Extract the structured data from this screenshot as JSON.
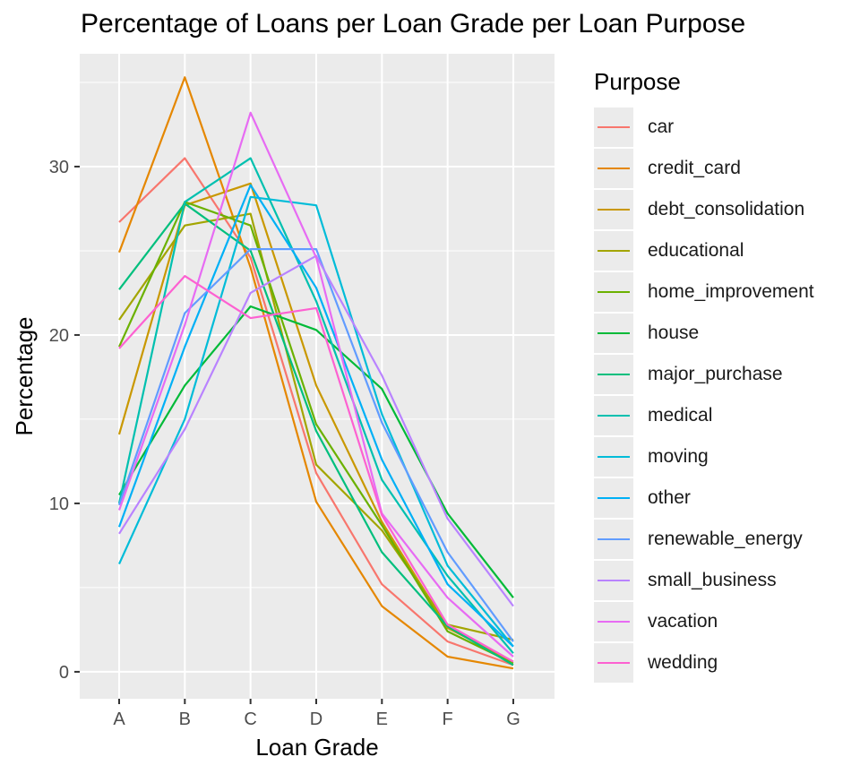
{
  "chart_data": {
    "type": "line",
    "title": "Percentage of Loans per Loan Grade per Loan Purpose",
    "xlabel": "Loan Grade",
    "ylabel": "Percentage",
    "categories": [
      "A",
      "B",
      "C",
      "D",
      "E",
      "F",
      "G"
    ],
    "y_ticks": [
      0,
      10,
      20,
      30
    ],
    "ylim": [
      -1.6,
      36.7
    ],
    "grid": true,
    "legend": {
      "title": "Purpose",
      "position": "right"
    },
    "series": [
      {
        "name": "car",
        "color": "#F8766D",
        "values": [
          26.7,
          30.5,
          24.6,
          11.8,
          5.2,
          1.8,
          0.4
        ]
      },
      {
        "name": "credit_card",
        "color": "#E58700",
        "values": [
          24.9,
          35.3,
          24.0,
          10.1,
          3.9,
          0.9,
          0.2
        ]
      },
      {
        "name": "debt_consolidation",
        "color": "#C99800",
        "values": [
          14.1,
          27.7,
          29.0,
          17.0,
          8.9,
          2.6,
          0.6
        ]
      },
      {
        "name": "educational",
        "color": "#A3A500",
        "values": [
          20.9,
          26.5,
          27.2,
          12.3,
          8.4,
          2.8,
          1.9
        ]
      },
      {
        "name": "home_improvement",
        "color": "#6BB100",
        "values": [
          19.3,
          27.9,
          26.5,
          14.7,
          8.7,
          2.4,
          0.5
        ]
      },
      {
        "name": "house",
        "color": "#00BA38",
        "values": [
          10.5,
          17.0,
          21.7,
          20.3,
          16.8,
          9.4,
          4.4
        ]
      },
      {
        "name": "major_purchase",
        "color": "#00BF7D",
        "values": [
          22.7,
          27.8,
          25.0,
          14.3,
          7.1,
          2.7,
          0.4
        ]
      },
      {
        "name": "medical",
        "color": "#00C0AF",
        "values": [
          10.0,
          27.9,
          30.5,
          22.0,
          11.4,
          5.7,
          1.1
        ]
      },
      {
        "name": "moving",
        "color": "#00BCD8",
        "values": [
          6.4,
          15.0,
          28.2,
          27.7,
          15.3,
          6.3,
          1.5
        ]
      },
      {
        "name": "other",
        "color": "#00B0F6",
        "values": [
          8.6,
          19.3,
          28.9,
          22.8,
          12.6,
          5.2,
          1.5
        ]
      },
      {
        "name": "renewable_energy",
        "color": "#619CFF",
        "values": [
          9.9,
          21.3,
          25.1,
          25.1,
          14.8,
          7.1,
          1.8
        ]
      },
      {
        "name": "small_business",
        "color": "#B983FF",
        "values": [
          8.2,
          14.4,
          22.5,
          24.7,
          17.6,
          9.1,
          3.9
        ]
      },
      {
        "name": "vacation",
        "color": "#E76BF3",
        "values": [
          9.6,
          20.6,
          33.2,
          24.6,
          9.4,
          4.4,
          0.9
        ]
      },
      {
        "name": "wedding",
        "color": "#FD61D1",
        "values": [
          19.2,
          23.5,
          21.0,
          21.6,
          9.3,
          2.8,
          0.6
        ]
      }
    ]
  }
}
